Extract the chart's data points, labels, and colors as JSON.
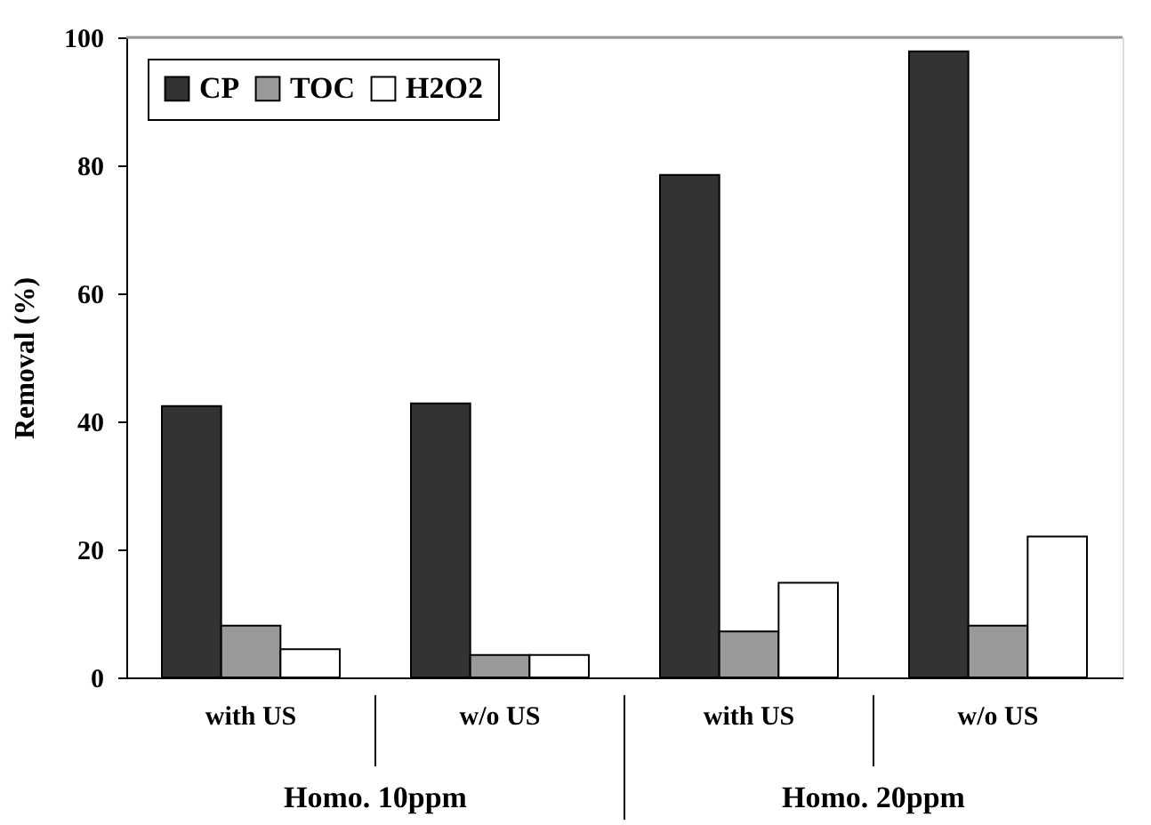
{
  "chart_data": {
    "type": "bar",
    "ylabel": "Removal (%)",
    "categories": [
      "with US",
      "w/o US",
      "with US",
      "w/o US"
    ],
    "series": [
      {
        "name": "CP",
        "color": "#333333",
        "values": [
          42.4,
          42.8,
          78.5,
          97.8
        ]
      },
      {
        "name": "TOC",
        "color": "#999999",
        "values": [
          8.1,
          3.5,
          7.2,
          8.1
        ]
      },
      {
        "name": "H2O2",
        "color": "#ffffff",
        "values": [
          4.4,
          3.5,
          14.8,
          22.0
        ]
      }
    ],
    "annotations": [
      "Homo. 10ppm",
      "Homo. 20ppm"
    ],
    "ylim": [
      0,
      100
    ],
    "yticks": [
      0,
      20,
      40,
      60,
      80,
      100
    ],
    "grid": false,
    "legend": "top left"
  }
}
